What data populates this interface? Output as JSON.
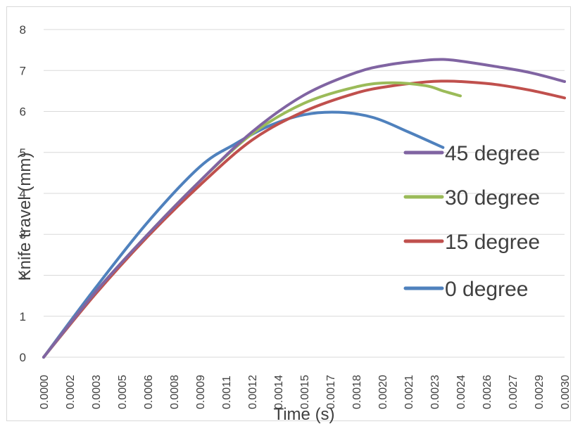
{
  "chart_data": {
    "type": "line",
    "title": "",
    "xlabel": "Time (s)",
    "ylabel": "Knife travel (mm)",
    "ylim": [
      0,
      8
    ],
    "xlim": [
      0,
      0.003
    ],
    "y_ticks": [
      "0",
      "1",
      "2",
      "3",
      "4",
      "5",
      "6",
      "7",
      "8"
    ],
    "x_ticks": [
      "0.0000",
      "0.0002",
      "0.0003",
      "0.0005",
      "0.0006",
      "0.0008",
      "0.0009",
      "0.0011",
      "0.0012",
      "0.0014",
      "0.0015",
      "0.0017",
      "0.0018",
      "0.0020",
      "0.0021",
      "0.0023",
      "0.0024",
      "0.0026",
      "0.0027",
      "0.0029",
      "0.0030"
    ],
    "grid": "horizontal",
    "legend_position": "right",
    "series": [
      {
        "name": "45 degree",
        "color": "#8064A2",
        "x": [
          0,
          0.0003,
          0.0006,
          0.0009,
          0.0012,
          0.0015,
          0.0018,
          0.002,
          0.0022,
          0.0023,
          0.0024,
          0.0026,
          0.0028,
          0.003
        ],
        "y": [
          0,
          1.6,
          3.0,
          4.3,
          5.5,
          6.4,
          6.95,
          7.15,
          7.25,
          7.27,
          7.23,
          7.1,
          6.95,
          6.73
        ]
      },
      {
        "name": "30 degree",
        "color": "#9BBB59",
        "x": [
          0,
          0.0003,
          0.0006,
          0.0009,
          0.0012,
          0.0015,
          0.0018,
          0.002,
          0.0022,
          0.0023,
          0.0024
        ],
        "y": [
          0,
          1.6,
          3.0,
          4.3,
          5.45,
          6.2,
          6.6,
          6.7,
          6.63,
          6.5,
          6.38
        ]
      },
      {
        "name": "15 degree",
        "color": "#C0504D",
        "x": [
          0,
          0.0003,
          0.0006,
          0.0009,
          0.0012,
          0.0015,
          0.0018,
          0.002,
          0.0022,
          0.0023,
          0.0024,
          0.0026,
          0.0028,
          0.003
        ],
        "y": [
          0,
          1.55,
          2.95,
          4.2,
          5.3,
          6.0,
          6.45,
          6.62,
          6.72,
          6.74,
          6.73,
          6.66,
          6.52,
          6.33
        ]
      },
      {
        "name": "0 degree",
        "color": "#4F81BD",
        "x": [
          0,
          0.0003,
          0.0006,
          0.0009,
          0.0011,
          0.0013,
          0.0015,
          0.0017,
          0.0019,
          0.0021,
          0.0023
        ],
        "y": [
          0,
          1.7,
          3.3,
          4.65,
          5.2,
          5.65,
          5.92,
          5.98,
          5.85,
          5.5,
          5.12
        ]
      }
    ],
    "legend_order": [
      "45 degree",
      "30 degree",
      "15 degree",
      "0 degree"
    ]
  }
}
